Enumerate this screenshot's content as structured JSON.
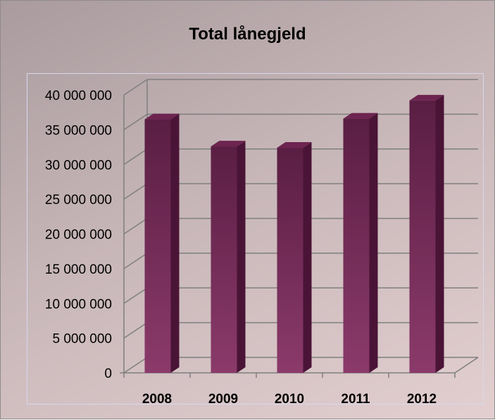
{
  "chart_data": {
    "type": "bar",
    "title": "Total lånegjeld",
    "categories": [
      "2008",
      "2009",
      "2010",
      "2011",
      "2012"
    ],
    "values": [
      36500000,
      32600000,
      32400000,
      36600000,
      39200000
    ],
    "ylim": [
      0,
      40000000
    ],
    "yticks": [
      0,
      5000000,
      10000000,
      15000000,
      20000000,
      25000000,
      30000000,
      35000000,
      40000000
    ],
    "ytick_labels": [
      "0",
      "5 000 000",
      "10 000 000",
      "15 000 000",
      "20 000 000",
      "25 000 000",
      "30 000 000",
      "35 000 000",
      "40 000 000"
    ],
    "grid": true,
    "legend": "none",
    "colors": {
      "bar_front_top": "#5a1e43",
      "bar_front_bottom": "#8b3a6a",
      "bar_side": "#4a1436",
      "bar_top": "#6d2450",
      "grid": "#7f7f7f"
    }
  }
}
